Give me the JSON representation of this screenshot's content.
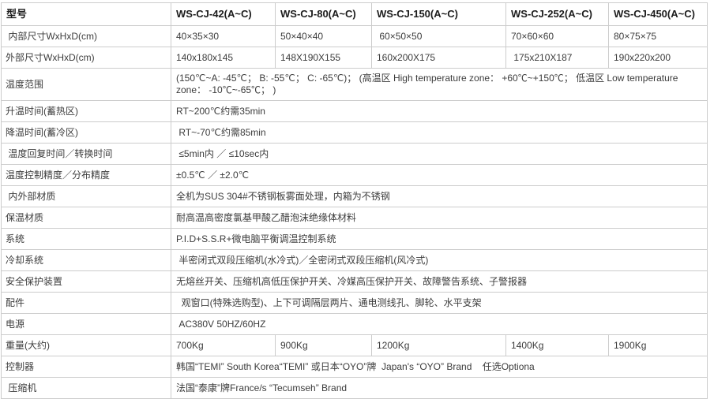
{
  "accent_colors": {
    "border": "#cccccc",
    "text": "#3c3c3c",
    "header_text": "#1c1c1c",
    "background": "#ffffff"
  },
  "table": {
    "header": {
      "label": "型号",
      "models": [
        "WS-CJ-42(A~C)",
        "WS-CJ-80(A~C)",
        "WS-CJ-150(A~C)",
        "WS-CJ-252(A~C)",
        "WS-CJ-450(A~C)"
      ]
    },
    "rows": [
      {
        "label": " 内部尺寸WxHxD(cm)",
        "values": [
          "40×35×30",
          "50×40×40",
          " 60×50×50",
          "70×60×60",
          "80×75×75"
        ]
      },
      {
        "label": "外部尺寸WxHxD(cm)",
        "values": [
          "140x180x145",
          "148X190X155",
          "160x200X175",
          " 175x210X187",
          "190x220x200"
        ]
      },
      {
        "label": "温度范围",
        "value": "(150℃~A: -45℃； B: -55℃； C: -65℃)； (高温区 High temperature zone： +60℃~+150℃； 低温区 Low temperature zone： -10℃~-65℃； )"
      },
      {
        "label": "升温时间(蓄热区)",
        "value": "RT~200℃约需35min"
      },
      {
        "label": "降温时间(蓄冷区)",
        "value": " RT~-70℃约需85min"
      },
      {
        "label": " 温度回复时间／转换时间",
        "value": " ≤5min内 ／ ≤10sec内"
      },
      {
        "label": "温度控制精度／分布精度",
        "value": "±0.5℃ ／ ±2.0℃"
      },
      {
        "label": " 内外部材质",
        "value": "全机为SUS 304#不锈钢板雾面处理，内箱为不锈钢"
      },
      {
        "label": "保温材质",
        "value": "耐高温高密度氯基甲酸乙醋泡沫绝缘体材料"
      },
      {
        "label": "系统",
        "value": "P.I.D+S.S.R+微电脑平衡调温控制系统"
      },
      {
        "label": "冷却系统",
        "value": " 半密闭式双段压缩机(水冷式)／全密闭式双段压缩机(风冷式)"
      },
      {
        "label": "安全保护装置",
        "value": "无熔丝开关、压缩机高低压保护开关、冷媒高压保护开关、故障警告系统、子警报器"
      },
      {
        "label": "配件",
        "value": "  观窗口(特殊选购型)、上下可调隔层两片、通电测线孔、脚轮、水平支架"
      },
      {
        "label": "电源",
        "value": " AC380V 50HZ/60HZ"
      },
      {
        "label": "重量(大约)",
        "values": [
          "700Kg",
          "900Kg",
          "1200Kg",
          "1400Kg",
          "1900Kg"
        ]
      },
      {
        "label": "控制器",
        "value": "韩国“TEMI” South Korea“TEMI” 或日本“OYO”牌  Japan's “OYO” Brand    任选Optiona"
      },
      {
        "label": " 压缩机",
        "value": "法国“泰康”牌France/s “Tecumseh” Brand"
      }
    ]
  }
}
